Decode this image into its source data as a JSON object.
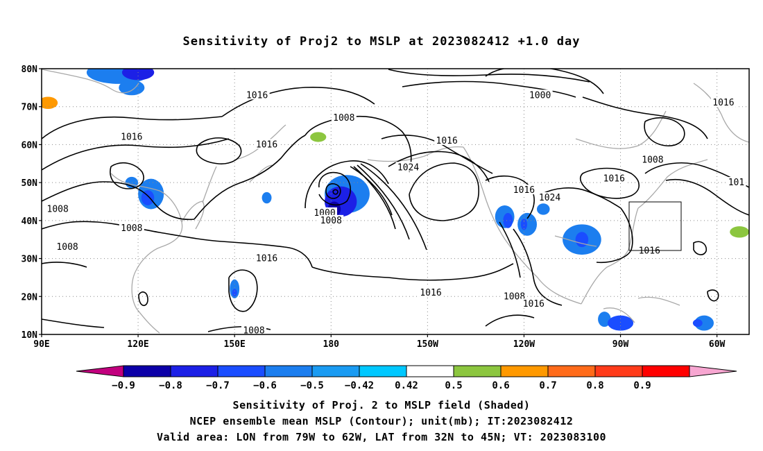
{
  "chart_data": {
    "type": "heatmap",
    "title": "Sensitivity of Proj2 to MSLP at 2023082412 +1.0 day",
    "xlabel": "",
    "ylabel": "",
    "x_ticks": [
      "90E",
      "120E",
      "150E",
      "180",
      "150W",
      "120W",
      "90W",
      "60W"
    ],
    "y_ticks": [
      "10N",
      "20N",
      "30N",
      "40N",
      "50N",
      "60N",
      "70N",
      "80N"
    ],
    "lon_range_east": [
      90,
      310
    ],
    "lat_range": [
      10,
      80
    ],
    "grid": true,
    "grid_style": "dotted",
    "colorbar": {
      "labels": [
        "−0.9",
        "−0.8",
        "−0.7",
        "−0.6",
        "−0.5",
        "−0.42",
        "0.42",
        "0.5",
        "0.6",
        "0.7",
        "0.8",
        "0.9"
      ],
      "colors": [
        "#c2007e",
        "#0c00a8",
        "#1c20e6",
        "#1a4dff",
        "#1c7eef",
        "#1a9bf2",
        "#00c8ff",
        "#ffffff",
        "#8cc63f",
        "#ff9900",
        "#ff6b1a",
        "#ff3b1a",
        "#ff0000",
        "#f7a6d1"
      ]
    },
    "valid_box": {
      "lon_west": 79,
      "lon_east": 62,
      "lat_south": 32,
      "lat_north": 45
    },
    "contour_labels": [
      {
        "text": "1016",
        "lon": 157,
        "lat": 73
      },
      {
        "text": "1000",
        "lon": 245,
        "lat": 73
      },
      {
        "text": "1016",
        "lon": 302,
        "lat": 71
      },
      {
        "text": "1008",
        "lon": 184,
        "lat": 67
      },
      {
        "text": "1016",
        "lon": 118,
        "lat": 62
      },
      {
        "text": "1016",
        "lon": 160,
        "lat": 60
      },
      {
        "text": "1016",
        "lon": 216,
        "lat": 61
      },
      {
        "text": "1024",
        "lon": 204,
        "lat": 54
      },
      {
        "text": "1008",
        "lon": 280,
        "lat": 56
      },
      {
        "text": "1016",
        "lon": 268,
        "lat": 51
      },
      {
        "text": "101",
        "lon": 306,
        "lat": 50
      },
      {
        "text": "1016",
        "lon": 240,
        "lat": 48
      },
      {
        "text": "1024",
        "lon": 248,
        "lat": 46
      },
      {
        "text": "1008",
        "lon": 95,
        "lat": 43
      },
      {
        "text": "1000",
        "lon": 178,
        "lat": 42
      },
      {
        "text": "1008",
        "lon": 180,
        "lat": 40
      },
      {
        "text": "1008",
        "lon": 118,
        "lat": 38
      },
      {
        "text": "1008",
        "lon": 98,
        "lat": 33
      },
      {
        "text": "1016",
        "lon": 279,
        "lat": 32
      },
      {
        "text": "1016",
        "lon": 160,
        "lat": 30
      },
      {
        "text": "1016",
        "lon": 211,
        "lat": 21
      },
      {
        "text": "1008",
        "lon": 237,
        "lat": 20
      },
      {
        "text": "1016",
        "lon": 243,
        "lat": 18
      },
      {
        "text": "1008",
        "lon": 156,
        "lat": 11
      }
    ],
    "shaded_regions": [
      {
        "value": -0.5,
        "lon": 114,
        "lat": 79,
        "rx": 10,
        "ry": 3
      },
      {
        "value": -0.7,
        "lon": 120,
        "lat": 79,
        "rx": 5,
        "ry": 2
      },
      {
        "value": -0.5,
        "lon": 118,
        "lat": 75,
        "rx": 4,
        "ry": 2
      },
      {
        "value": 0.6,
        "lon": 92,
        "lat": 71,
        "rx": 3,
        "ry": 1.6
      },
      {
        "value": -0.5,
        "lon": 118,
        "lat": 50,
        "rx": 2,
        "ry": 1.5
      },
      {
        "value": -0.5,
        "lon": 124,
        "lat": 47,
        "rx": 4,
        "ry": 4
      },
      {
        "value": -0.6,
        "lon": 123,
        "lat": 46,
        "rx": 2,
        "ry": 2
      },
      {
        "value": -0.5,
        "lon": 160,
        "lat": 46,
        "rx": 1.5,
        "ry": 1.5
      },
      {
        "value": -0.5,
        "lon": 150,
        "lat": 22,
        "rx": 1.5,
        "ry": 2.5
      },
      {
        "value": -0.6,
        "lon": 150,
        "lat": 21,
        "rx": 0.8,
        "ry": 1
      },
      {
        "value": 0.5,
        "lon": 176,
        "lat": 62,
        "rx": 2.5,
        "ry": 1.3
      },
      {
        "value": -0.5,
        "lon": 185,
        "lat": 47,
        "rx": 7,
        "ry": 5
      },
      {
        "value": -0.7,
        "lon": 183,
        "lat": 45,
        "rx": 5,
        "ry": 4
      },
      {
        "value": -0.8,
        "lon": 181,
        "lat": 43,
        "rx": 2,
        "ry": 2
      },
      {
        "value": -0.5,
        "lon": 234,
        "lat": 41,
        "rx": 3,
        "ry": 3
      },
      {
        "value": -0.6,
        "lon": 235,
        "lat": 40,
        "rx": 1.5,
        "ry": 2
      },
      {
        "value": -0.5,
        "lon": 241,
        "lat": 39,
        "rx": 3,
        "ry": 3
      },
      {
        "value": -0.6,
        "lon": 240,
        "lat": 39,
        "rx": 1,
        "ry": 1.5
      },
      {
        "value": -0.5,
        "lon": 246,
        "lat": 43,
        "rx": 2,
        "ry": 1.5
      },
      {
        "value": -0.5,
        "lon": 258,
        "lat": 35,
        "rx": 6,
        "ry": 4
      },
      {
        "value": -0.6,
        "lon": 258,
        "lat": 35,
        "rx": 2,
        "ry": 2
      },
      {
        "value": -0.5,
        "lon": 265,
        "lat": 14,
        "rx": 2,
        "ry": 2
      },
      {
        "value": -0.6,
        "lon": 270,
        "lat": 13,
        "rx": 4,
        "ry": 2
      },
      {
        "value": -0.5,
        "lon": 296,
        "lat": 13,
        "rx": 3,
        "ry": 2
      },
      {
        "value": -0.6,
        "lon": 294,
        "lat": 13,
        "rx": 1.5,
        "ry": 1
      },
      {
        "value": 0.5,
        "lon": 307,
        "lat": 37,
        "rx": 3,
        "ry": 1.5
      }
    ]
  },
  "captions": {
    "line1": "Sensitivity of Proj. 2 to MSLP field (Shaded)",
    "line2": "NCEP ensemble mean MSLP (Contour); unit(mb); IT:2023082412",
    "line3": "Valid area: LON from 79W to 62W, LAT from 32N to 45N; VT: 2023083100"
  }
}
